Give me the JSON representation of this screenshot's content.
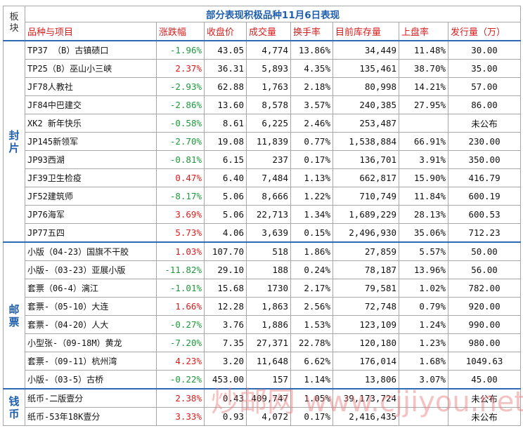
{
  "header": {
    "title": "部分表现积极品种11月6日表现",
    "section_label": "板块"
  },
  "columns": [
    "品种与项目",
    "涨跌幅",
    "收盘价",
    "成交量",
    "换手率",
    "目前库存量",
    "上盘率",
    "发行量（万）"
  ],
  "groups": [
    {
      "name": "封片",
      "rows": [
        [
          "TP37 （B）古镇碛口",
          "-1.96%",
          "43.05",
          "4,774",
          "13.86%",
          "34,449",
          "11.48%",
          "30.00"
        ],
        [
          "TP25（B）巫山小三峡",
          "2.37%",
          "36.31",
          "5,893",
          "4.35%",
          "135,461",
          "38.70%",
          "35.00"
        ],
        [
          "JF78人教社",
          "-2.93%",
          "62.88",
          "1,763",
          "2.18%",
          "80,998",
          "14.21%",
          "57.00"
        ],
        [
          "JF84中巴建交",
          "-2.86%",
          "13.60",
          "8,578",
          "3.57%",
          "240,385",
          "27.95%",
          "86.00"
        ],
        [
          "XK2 新年快乐",
          "-0.58%",
          "8.61",
          "6,225",
          "2.46%",
          "253,487",
          null,
          "未公布"
        ],
        [
          "JP145新领军",
          "-2.70%",
          "19.08",
          "11,839",
          "0.77%",
          "1,538,884",
          "66.91%",
          "230.00"
        ],
        [
          "JP93西湖",
          "-0.81%",
          "6.15",
          "237",
          "0.17%",
          "136,701",
          "3.91%",
          "350.00"
        ],
        [
          "JF39卫生检疫",
          "0.47%",
          "6.40",
          "7,484",
          "1.13%",
          "662,817",
          "15.90%",
          "416.79"
        ],
        [
          "JF52建筑师",
          "-8.17%",
          "5.06",
          "8,666",
          "1.22%",
          "710,749",
          "11.84%",
          "600.19"
        ],
        [
          "JP76海军",
          "3.69%",
          "5.06",
          "22,713",
          "1.34%",
          "1,689,229",
          "28.13%",
          "600.53"
        ],
        [
          "JP77五四",
          "5.73%",
          "4.06",
          "3,639",
          "0.15%",
          "2,496,930",
          "35.06%",
          "712.23"
        ]
      ]
    },
    {
      "name": "邮票",
      "rows": [
        [
          "小版（04-23）国旗不干胶",
          "1.03%",
          "107.70",
          "518",
          "1.86%",
          "27,859",
          "5.57%",
          "50.00"
        ],
        [
          "小版-（03-23）亚展小版",
          "-11.82%",
          "29.10",
          "188",
          "0.24%",
          "78,187",
          "13.96%",
          "56.00"
        ],
        [
          "套票（06-4）漓江",
          "-1.01%",
          "15.68",
          "1730",
          "2.17%",
          "79,581",
          "1.02%",
          "782.00"
        ],
        [
          "套票-（05-10）大连",
          "1.66%",
          "12.28",
          "1,863",
          "2.56%",
          "72,748",
          "0.79%",
          "920.00"
        ],
        [
          "套票-（04-20）人大",
          "-0.27%",
          "3.76",
          "1,886",
          "1.53%",
          "123,109",
          "1.24%",
          "990.00"
        ],
        [
          "小型张-（09-18M）黄龙",
          "-7.20%",
          "7.35",
          "27,371",
          "22.78%",
          "120,180",
          "1.23%",
          "980.00"
        ],
        [
          "套票-（09-11）杭州湾",
          "4.23%",
          "3.20",
          "11,648",
          "6.62%",
          "176,014",
          "1.68%",
          "1049.63"
        ],
        [
          "小版-（03-5）古桥",
          "-0.22%",
          "453.00",
          "157",
          "1.14%",
          "13,806",
          "3.07%",
          "45.00"
        ]
      ]
    },
    {
      "name": "钱币",
      "rows": [
        [
          "纸币-二版壹分",
          "2.38%",
          "0.43",
          "409,747",
          "1.05%",
          "39,173,724",
          null,
          "未公布"
        ],
        [
          "纸币-53年18K壹分",
          "3.33%",
          "0.93",
          "4,072",
          "0.17%",
          "2,416,435",
          null,
          "未公布"
        ]
      ]
    }
  ],
  "watermark": "炒邮网 www.cjjiyou.net"
}
